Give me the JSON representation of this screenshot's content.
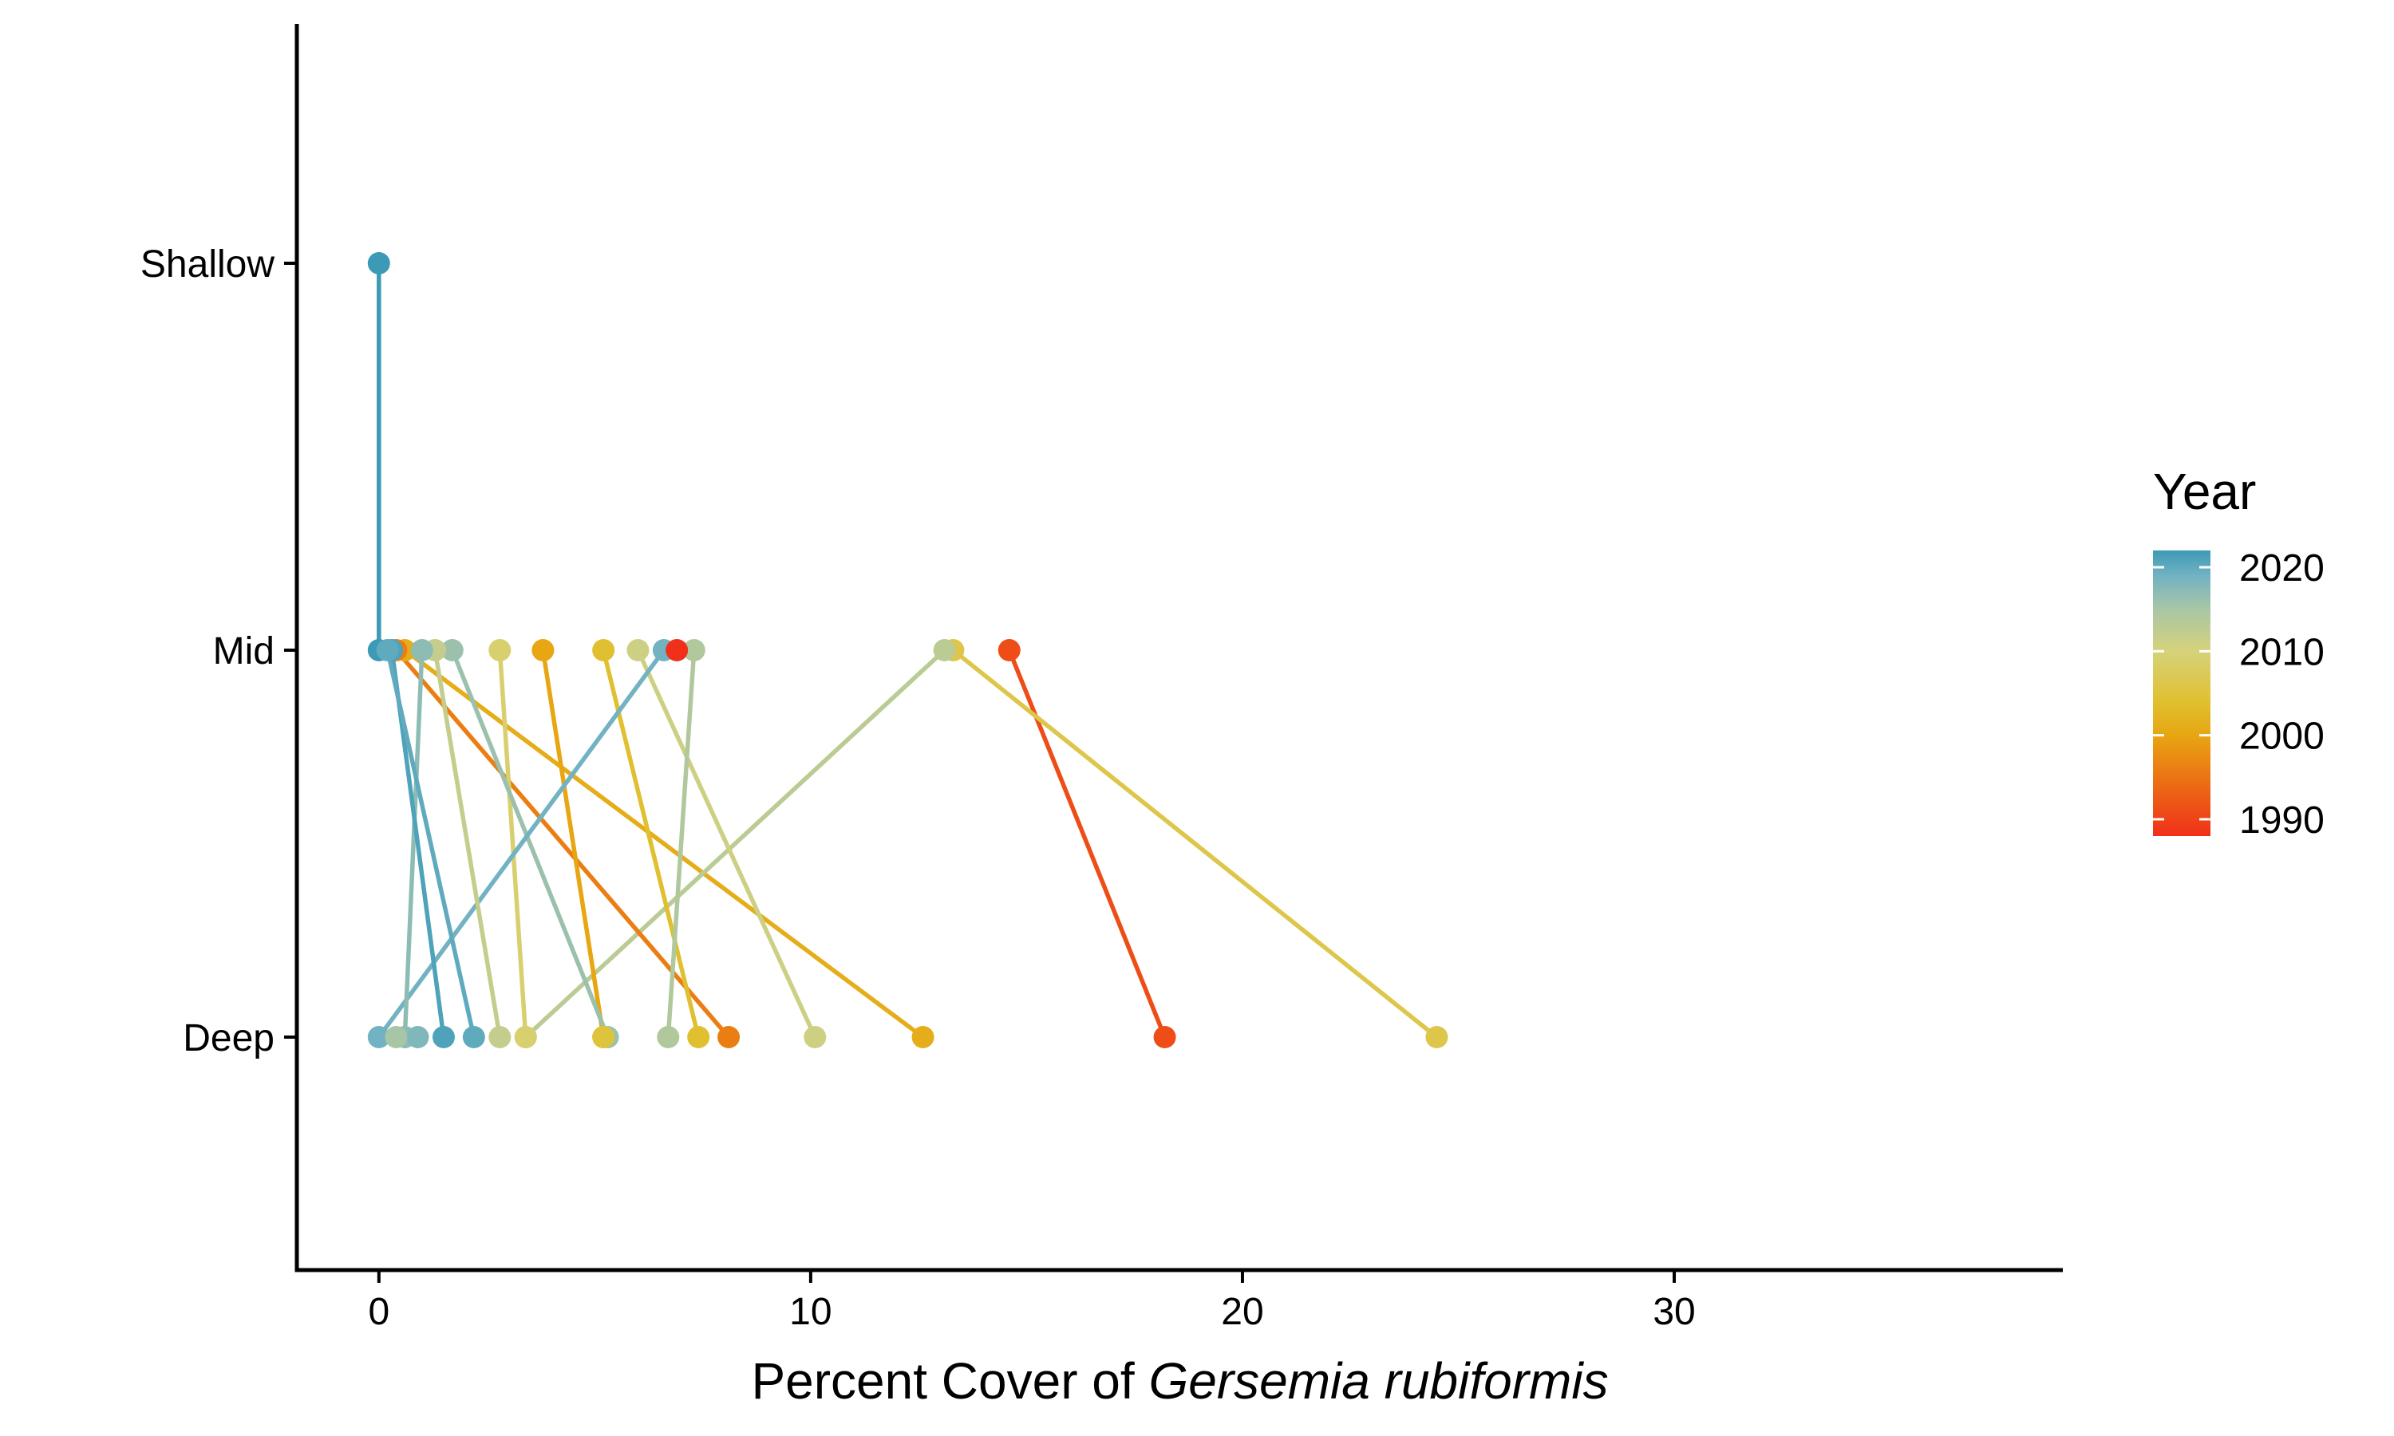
{
  "chart_data": {
    "type": "line",
    "xlabel_prefix": "Percent Cover of ",
    "xlabel_italic": "Gersemia rubiformis",
    "ylabel": "",
    "xlim": [
      -1.9,
      39
    ],
    "x_ticks": [
      0,
      10,
      20,
      30
    ],
    "x_tick_labels": [
      "0",
      "10",
      "20",
      "30"
    ],
    "y_categories": [
      "Shallow",
      "Mid",
      "Deep"
    ],
    "grid": false,
    "legend": {
      "title": "Year",
      "placement": "right",
      "type": "colorbar",
      "range": [
        1988,
        2022
      ],
      "ticks": [
        2020,
        2010,
        2000,
        1990
      ],
      "tick_labels": [
        "2020",
        "2010",
        "2000",
        "1990"
      ],
      "colors": {
        "1988": "#f0301a",
        "1994": "#ec6a14",
        "2000": "#e7a612",
        "2004": "#e0c030",
        "2010": "#d6d27a",
        "2015": "#a8c6a6",
        "2019": "#72b2c2",
        "2022": "#3c9ab6"
      }
    },
    "series": [
      {
        "year": 2022,
        "points": [
          {
            "y": "Shallow",
            "x": 0
          },
          {
            "y": "Mid",
            "x": 0
          }
        ]
      },
      {
        "year": 1991,
        "points": [
          {
            "y": "Mid",
            "x": 14.6
          },
          {
            "y": "Deep",
            "x": 18.2
          }
        ]
      },
      {
        "year": 2006,
        "points": [
          {
            "y": "Mid",
            "x": 13.3
          },
          {
            "y": "Deep",
            "x": 24.5
          }
        ]
      },
      {
        "year": 2001,
        "points": [
          {
            "y": "Mid",
            "x": 0.6
          },
          {
            "y": "Deep",
            "x": 12.6
          }
        ]
      },
      {
        "year": 2013,
        "points": [
          {
            "y": "Mid",
            "x": 13.1
          },
          {
            "y": "Deep",
            "x": 3.4
          }
        ]
      },
      {
        "year": 1996,
        "points": [
          {
            "y": "Mid",
            "x": 0.4
          },
          {
            "y": "Deep",
            "x": 8.1
          }
        ]
      },
      {
        "year": 2000,
        "points": [
          {
            "y": "Mid",
            "x": 3.8
          },
          {
            "y": "Deep",
            "x": 5.2
          }
        ]
      },
      {
        "year": 2004,
        "points": [
          {
            "y": "Mid",
            "x": 5.2
          },
          {
            "y": "Deep",
            "x": 7.4
          }
        ]
      },
      {
        "year": 2011,
        "points": [
          {
            "y": "Mid",
            "x": 6.0
          },
          {
            "y": "Deep",
            "x": 10.1
          }
        ]
      },
      {
        "year": 2009,
        "points": [
          {
            "y": "Mid",
            "x": 2.8
          },
          {
            "y": "Deep",
            "x": 3.4
          }
        ]
      },
      {
        "year": 2016,
        "points": [
          {
            "y": "Mid",
            "x": 1.7
          },
          {
            "y": "Deep",
            "x": 5.3
          }
        ]
      },
      {
        "year": 2014,
        "points": [
          {
            "y": "Mid",
            "x": 7.3
          },
          {
            "y": "Deep",
            "x": 6.7
          }
        ]
      },
      {
        "year": 2019,
        "points": [
          {
            "y": "Mid",
            "x": 6.6
          },
          {
            "y": "Deep",
            "x": 0
          }
        ]
      },
      {
        "year": 2012,
        "points": [
          {
            "y": "Mid",
            "x": 1.3
          },
          {
            "y": "Deep",
            "x": 2.8
          }
        ]
      },
      {
        "year": 2017,
        "points": [
          {
            "y": "Mid",
            "x": 1.0
          },
          {
            "y": "Deep",
            "x": 0.6
          }
        ]
      },
      {
        "year": 2021,
        "points": [
          {
            "y": "Mid",
            "x": 0.3
          },
          {
            "y": "Deep",
            "x": 1.5
          }
        ]
      },
      {
        "year": 2020,
        "points": [
          {
            "y": "Mid",
            "x": 0.2
          },
          {
            "y": "Deep",
            "x": 2.2
          }
        ]
      },
      {
        "year": 1988,
        "points": [
          {
            "y": "Mid",
            "x": 6.9
          }
        ]
      },
      {
        "year": 2018,
        "points": [
          {
            "y": "Deep",
            "x": 0.9
          }
        ]
      },
      {
        "year": 2015,
        "points": [
          {
            "y": "Deep",
            "x": 0.4
          }
        ]
      },
      {
        "year": 2005,
        "points": [
          {
            "y": "Deep",
            "x": 5.2
          }
        ]
      }
    ]
  }
}
